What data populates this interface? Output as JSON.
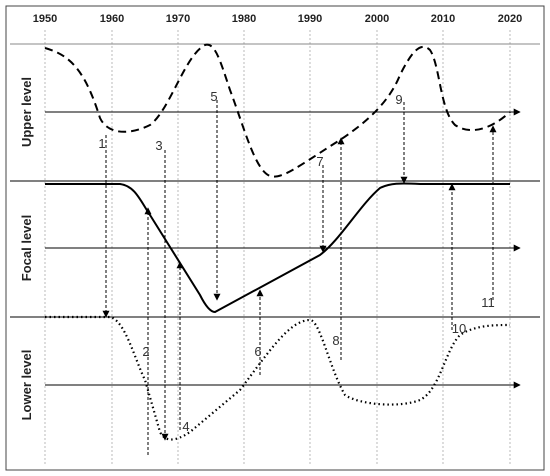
{
  "years": [
    "1950",
    "1960",
    "1970",
    "1980",
    "1990",
    "2000",
    "2010",
    "2020"
  ],
  "levels": [
    "Upper level",
    "Focal level",
    "Lower level"
  ],
  "events": [
    "1",
    "2",
    "3",
    "4",
    "5",
    "6",
    "7",
    "8",
    "9",
    "10",
    "11"
  ]
}
